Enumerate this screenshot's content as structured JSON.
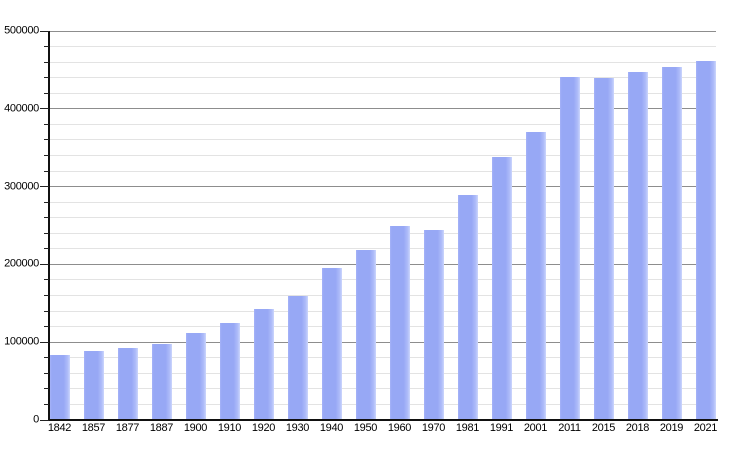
{
  "chart_data": {
    "type": "bar",
    "title": "",
    "xlabel": "",
    "ylabel": "",
    "categories": [
      "1842",
      "1857",
      "1877",
      "1887",
      "1900",
      "1910",
      "1920",
      "1930",
      "1940",
      "1950",
      "1960",
      "1970",
      "1981",
      "1991",
      "2001",
      "2011",
      "2015",
      "2018",
      "2019",
      "2021"
    ],
    "values": [
      83000,
      89000,
      92000,
      98000,
      112000,
      125000,
      143000,
      159000,
      195000,
      219000,
      250000,
      244000,
      289000,
      338000,
      370000,
      441000,
      440000,
      447000,
      454000,
      461000
    ],
    "ylim": [
      0,
      500000
    ],
    "y_major_step": 100000,
    "y_minor_step": 20000,
    "y_tick_labels": [
      "0",
      "100000",
      "200000",
      "300000",
      "400000",
      "500000"
    ],
    "grid": "horizontal, minor every 20000 (light), major every 100000 (dark)",
    "legend": "none",
    "colors": {
      "bar_fill": "#97a8f5",
      "bar_fill_light_edge": "#ccd6fc",
      "grid_major": "#8d8d8d",
      "grid_minor": "#e3e3e3",
      "axis": "#111111",
      "label_text": "#000000",
      "background": "#ffffff"
    }
  }
}
